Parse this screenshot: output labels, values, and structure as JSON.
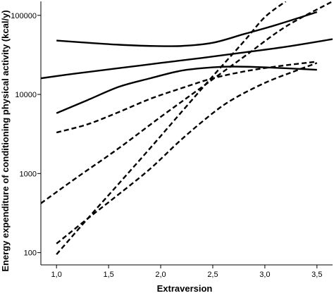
{
  "chart_data": {
    "type": "line",
    "title": "",
    "xlabel": "Extraversion",
    "ylabel": "Energy expenditure of conditioning physical activity (kcal/y)",
    "x_scale": "linear",
    "y_scale": "log",
    "xlim": [
      0.85,
      3.65
    ],
    "ylim": [
      70,
      150000
    ],
    "x_ticks": [
      1.0,
      1.5,
      2.0,
      2.5,
      3.0,
      3.5
    ],
    "x_tick_labels": [
      "1,0",
      "1,5",
      "2,0",
      "2,5",
      "3,0",
      "3,5"
    ],
    "y_ticks": [
      100,
      1000,
      10000,
      100000
    ],
    "y_tick_labels": [
      "100",
      "1000",
      "10000",
      "100000"
    ],
    "grid": false,
    "legend": "none",
    "series": [
      {
        "style": "solid",
        "x": [
          0.85,
          1.2,
          1.6,
          2.0,
          2.4,
          2.8,
          3.2,
          3.65
        ],
        "y": [
          16000,
          18500,
          21500,
          25000,
          29000,
          34000,
          40000,
          50000
        ]
      },
      {
        "style": "solid",
        "x": [
          1.0,
          1.3,
          1.6,
          1.9,
          2.2,
          2.5,
          2.8,
          3.1,
          3.5
        ],
        "y": [
          48000,
          45000,
          42500,
          41000,
          41000,
          45000,
          58000,
          75000,
          110000
        ]
      },
      {
        "style": "solid",
        "x": [
          1.0,
          1.3,
          1.6,
          1.9,
          2.2,
          2.5,
          2.7,
          3.0,
          3.5
        ],
        "y": [
          5800,
          8500,
          12500,
          16000,
          20000,
          22000,
          22500,
          22000,
          20500
        ]
      },
      {
        "style": "dashed",
        "x": [
          0.85,
          1.2,
          1.6,
          2.0,
          2.4,
          2.8,
          3.2,
          3.65
        ],
        "y": [
          420,
          900,
          2100,
          5200,
          12500,
          30000,
          72000,
          150000
        ]
      },
      {
        "style": "dashed",
        "x": [
          1.0,
          1.3,
          1.6,
          1.9,
          2.2,
          2.5,
          2.8,
          3.0,
          3.2
        ],
        "y": [
          95,
          270,
          750,
          2100,
          6000,
          17000,
          47000,
          95000,
          150000
        ]
      },
      {
        "style": "dashed",
        "x": [
          1.0,
          1.3,
          1.6,
          1.9,
          2.2,
          2.5,
          2.8,
          3.1,
          3.5
        ],
        "y": [
          3300,
          4200,
          6000,
          8800,
          12000,
          16000,
          19500,
          22500,
          26000
        ]
      },
      {
        "style": "dashed",
        "x": [
          1.0,
          1.3,
          1.6,
          1.9,
          2.2,
          2.5,
          2.7,
          3.0,
          3.3,
          3.5
        ],
        "y": [
          130,
          270,
          550,
          1150,
          2700,
          5800,
          8800,
          14000,
          20000,
          25000
        ]
      }
    ]
  }
}
